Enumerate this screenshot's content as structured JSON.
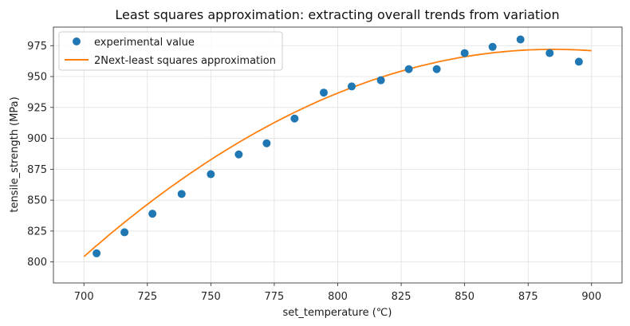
{
  "chart_data": {
    "type": "scatter",
    "title": "Least squares approximation: extracting overall trends from variation",
    "xlabel": "set_temperature (℃)",
    "ylabel": "tensile_strength (MPa)",
    "xlim": [
      688,
      912
    ],
    "ylim": [
      783,
      990
    ],
    "xticks": [
      700,
      725,
      750,
      775,
      800,
      825,
      850,
      875,
      900
    ],
    "yticks": [
      800,
      825,
      850,
      875,
      900,
      925,
      950,
      975
    ],
    "grid": true,
    "legend_position": "top-left",
    "series": [
      {
        "name": "experimental value",
        "kind": "scatter",
        "color": "#1f77b4",
        "x": [
          705,
          716,
          727,
          738.5,
          750,
          761,
          772,
          783,
          794.5,
          805.5,
          817,
          828,
          839,
          850,
          861,
          872,
          883.5,
          895
        ],
        "y": [
          807,
          824,
          839,
          855,
          871,
          887,
          896,
          916,
          937,
          942,
          947,
          956,
          956,
          969,
          974,
          980,
          969,
          962
        ]
      },
      {
        "name": "2Next-least squares approximation",
        "kind": "line",
        "color": "#ff7f0e",
        "x_range": [
          700,
          900
        ],
        "coefficients_quadratic": {
          "a": -0.0049,
          "vertex_x": 885,
          "vertex_y": 972
        }
      }
    ]
  }
}
